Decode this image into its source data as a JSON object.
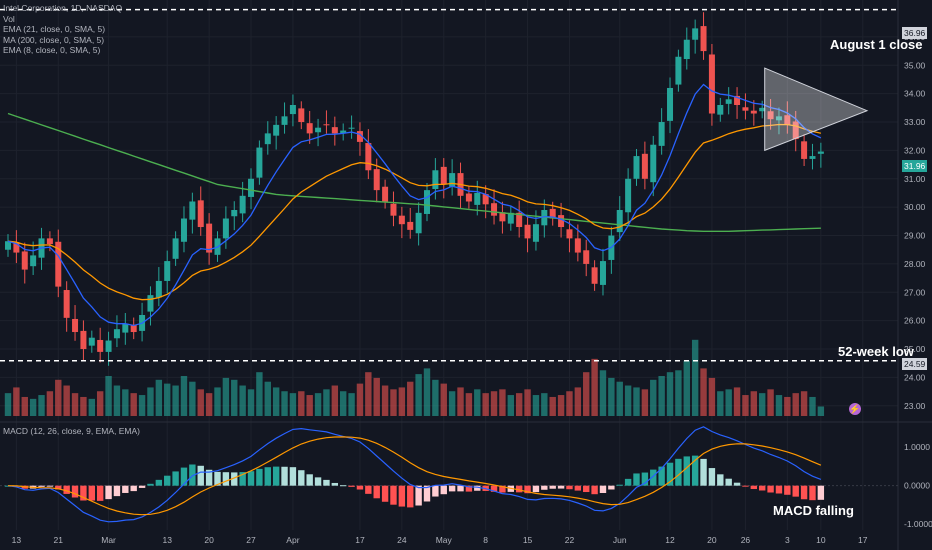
{
  "header": {
    "symbol_line": "Intel Corporation, 1D, NASDAQ",
    "vol_label": "Vol",
    "ind1": "EMA (21, close, 0, SMA, 5)",
    "ind2": "MA (200, close, 0, SMA, 5)",
    "ind3": "EMA (8, close, 0, SMA, 5)",
    "macd_label": "MACD (12, 26, close, 9, EMA, EMA)"
  },
  "annotations": {
    "august_close": "August 1 close",
    "low_52w": "52-week low",
    "macd_falling": "MACD falling"
  },
  "price_tags": {
    "high_line": "36.96",
    "low_line": "24.59",
    "last": "31.96"
  },
  "icons": {
    "alert": "lightning-icon"
  },
  "colors": {
    "up": "#26a69a",
    "down": "#ef5350",
    "ema8": "#2962ff",
    "ema21": "#ff9800",
    "ma200": "#4caf50",
    "macd": "#2962ff",
    "signal": "#ff9800"
  },
  "chart_data": {
    "type": "candlestick",
    "title": "Intel Corporation, 1D, NASDAQ",
    "price_axis": {
      "ylim": [
        22.5,
        37.3
      ],
      "ticks": [
        "23.00",
        "24.00",
        "25.00",
        "26.00",
        "27.00",
        "28.00",
        "29.00",
        "30.00",
        "31.00",
        "32.00",
        "33.00",
        "34.00",
        "35.00",
        "36.00"
      ]
    },
    "macd_axis": {
      "ylim": [
        -1.15,
        1.6
      ],
      "ticks": [
        "1.0000",
        "0.0000",
        "-1.0000"
      ]
    },
    "x_ticks": [
      {
        "label": "13",
        "i": 1
      },
      {
        "label": "21",
        "i": 6
      },
      {
        "label": "Mar",
        "i": 12
      },
      {
        "label": "13",
        "i": 19
      },
      {
        "label": "20",
        "i": 24
      },
      {
        "label": "27",
        "i": 29
      },
      {
        "label": "Apr",
        "i": 34
      },
      {
        "label": "17",
        "i": 42
      },
      {
        "label": "24",
        "i": 47
      },
      {
        "label": "May",
        "i": 52
      },
      {
        "label": "8",
        "i": 57
      },
      {
        "label": "15",
        "i": 62
      },
      {
        "label": "22",
        "i": 67
      },
      {
        "label": "Jun",
        "i": 73
      },
      {
        "label": "12",
        "i": 79
      },
      {
        "label": "20",
        "i": 84
      },
      {
        "label": "26",
        "i": 88
      },
      {
        "label": "3",
        "i": 93
      },
      {
        "label": "10",
        "i": 97
      },
      {
        "label": "17",
        "i": 102
      }
    ],
    "horizontal_lines": [
      36.96,
      24.59
    ],
    "triangle": [
      [
        33.5,
        33.35
      ],
      [
        34.9,
        33.4
      ],
      [
        32.0,
        33.4
      ]
    ],
    "closes": [
      28.8,
      28.4,
      27.8,
      28.3,
      28.9,
      28.7,
      27.2,
      26.1,
      25.6,
      25.0,
      25.4,
      24.9,
      25.3,
      25.7,
      25.9,
      25.6,
      26.2,
      26.9,
      27.4,
      28.1,
      28.9,
      29.6,
      30.2,
      29.3,
      28.4,
      28.9,
      29.6,
      29.9,
      30.4,
      31.0,
      32.1,
      32.6,
      32.9,
      33.2,
      33.6,
      33.0,
      32.6,
      32.8,
      32.9,
      32.6,
      32.7,
      32.8,
      32.3,
      31.3,
      30.6,
      30.2,
      29.7,
      29.4,
      29.2,
      29.8,
      30.6,
      31.3,
      30.8,
      31.2,
      30.4,
      30.2,
      30.5,
      30.1,
      29.7,
      29.5,
      29.8,
      29.3,
      28.9,
      29.4,
      29.9,
      29.6,
      29.3,
      28.9,
      28.4,
      28.0,
      27.3,
      28.1,
      29.0,
      29.9,
      31.0,
      31.8,
      31.0,
      32.2,
      33.0,
      34.2,
      35.3,
      35.9,
      36.3,
      35.5,
      33.3,
      33.6,
      33.8,
      33.6,
      33.4,
      33.3,
      33.5,
      33.1,
      33.2,
      32.9,
      32.4,
      31.7,
      31.8,
      31.96
    ],
    "volumes": [
      1.2,
      1.5,
      1.0,
      0.9,
      1.1,
      1.3,
      1.9,
      1.6,
      1.2,
      1.0,
      0.9,
      1.3,
      2.1,
      1.6,
      1.4,
      1.2,
      1.1,
      1.5,
      1.9,
      1.7,
      1.6,
      2.1,
      1.8,
      1.4,
      1.2,
      1.5,
      2.0,
      1.9,
      1.6,
      1.4,
      2.3,
      1.8,
      1.5,
      1.3,
      1.2,
      1.3,
      1.1,
      1.2,
      1.4,
      1.6,
      1.3,
      1.2,
      1.7,
      2.3,
      2.0,
      1.6,
      1.4,
      1.5,
      1.8,
      2.2,
      2.5,
      1.9,
      1.7,
      1.3,
      1.5,
      1.2,
      1.4,
      1.2,
      1.3,
      1.4,
      1.1,
      1.2,
      1.4,
      1.1,
      1.2,
      1.0,
      1.1,
      1.3,
      1.5,
      2.3,
      3.0,
      2.4,
      2.0,
      1.8,
      1.6,
      1.5,
      1.4,
      1.9,
      2.1,
      2.3,
      2.4,
      2.9,
      4.0,
      2.5,
      2.0,
      1.3,
      1.4,
      1.5,
      1.1,
      1.3,
      1.2,
      1.4,
      1.1,
      1.0,
      1.2,
      1.3,
      1.0,
      0.5
    ],
    "ma200": [
      33.3,
      33.2,
      33.1,
      33.0,
      32.9,
      32.8,
      32.7,
      32.6,
      32.5,
      32.4,
      32.3,
      32.2,
      32.1,
      32.0,
      31.9,
      31.8,
      31.7,
      31.6,
      31.5,
      31.4,
      31.3,
      31.2,
      31.1,
      31.0,
      30.9,
      30.8,
      30.75,
      30.7,
      30.65,
      30.6,
      30.55,
      30.5,
      30.45,
      30.42,
      30.4,
      30.38,
      30.36,
      30.34,
      30.32,
      30.3,
      30.28,
      30.26,
      30.24,
      30.22,
      30.2,
      30.18,
      30.16,
      30.14,
      30.12,
      30.1,
      30.07,
      30.04,
      30.01,
      29.98,
      29.95,
      29.92,
      29.89,
      29.86,
      29.83,
      29.8,
      29.77,
      29.74,
      29.71,
      29.68,
      29.65,
      29.62,
      29.59,
      29.56,
      29.53,
      29.5,
      29.47,
      29.44,
      29.41,
      29.38,
      29.35,
      29.32,
      29.29,
      29.26,
      29.23,
      29.21,
      29.19,
      29.17,
      29.16,
      29.15,
      29.15,
      29.15,
      29.15,
      29.16,
      29.17,
      29.18,
      29.19,
      29.2,
      29.21,
      29.22,
      29.23,
      29.24,
      29.25,
      29.26
    ]
  }
}
